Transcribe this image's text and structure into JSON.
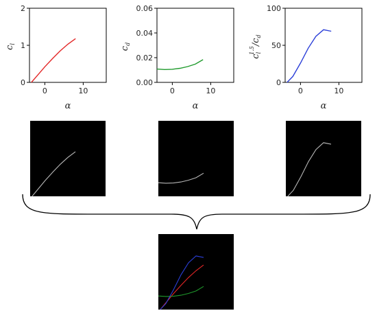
{
  "chart_data": [
    {
      "type": "line",
      "xlabel": "α",
      "ylabel_main": "c",
      "ylabel_sub": "l",
      "xlim": [
        -4,
        16
      ],
      "ylim": [
        0,
        2
      ],
      "xticks": [
        0,
        10
      ],
      "yticks": [
        0,
        1,
        2
      ],
      "ytick_labels": [
        "0",
        "1",
        "2"
      ],
      "color": "#e32626",
      "series": [
        {
          "x": [
            -3.5,
            -2,
            0,
            2,
            4,
            6,
            8
          ],
          "values": [
            0.0,
            0.18,
            0.42,
            0.64,
            0.85,
            1.03,
            1.18
          ]
        }
      ]
    },
    {
      "type": "line",
      "xlabel": "α",
      "ylabel_main": "c",
      "ylabel_sub": "d",
      "xlim": [
        -4,
        16
      ],
      "ylim": [
        0,
        0.06
      ],
      "xticks": [
        0,
        10
      ],
      "yticks": [
        0,
        0.02,
        0.04,
        0.06
      ],
      "ytick_labels": [
        "0.00",
        "0.02",
        "0.04",
        "0.06"
      ],
      "color": "#1f9a2c",
      "series": [
        {
          "x": [
            -4,
            -2,
            0,
            2,
            4,
            6,
            8
          ],
          "values": [
            0.0108,
            0.0104,
            0.0106,
            0.0114,
            0.0128,
            0.0148,
            0.0184
          ]
        }
      ]
    },
    {
      "type": "line",
      "xlabel": "α",
      "ylabel_main": "c",
      "ylabel_sup": "1.5",
      "ylabel_sub": "l",
      "ylabel_tail": "/c",
      "ylabel_tail_sub": "d",
      "xlim": [
        -4,
        16
      ],
      "ylim": [
        0,
        100
      ],
      "xticks": [
        0,
        10
      ],
      "yticks": [
        0,
        50,
        100
      ],
      "ytick_labels": [
        "0",
        "50",
        "100"
      ],
      "color": "#2b3fd8",
      "series": [
        {
          "x": [
            -3.5,
            -2,
            0,
            2,
            4,
            6,
            8
          ],
          "values": [
            0,
            8,
            26,
            46,
            62,
            71,
            69
          ]
        }
      ]
    }
  ],
  "colors": {
    "line_gray": "#b8b8b8",
    "background": "#ffffff",
    "panel": "#000000"
  }
}
